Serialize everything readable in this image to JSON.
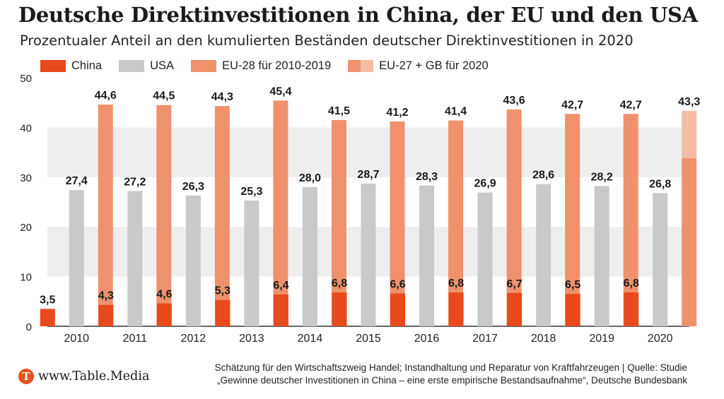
{
  "header": {
    "title": "Deutsche Direktinvestitionen in China, der EU und den USA",
    "subtitle": "Prozentualer Anteil an den kumulierten Beständen deutscher Direktinvestitionen in 2020"
  },
  "legend": {
    "items": [
      {
        "label": "China",
        "color": "#e8491d"
      },
      {
        "label": "USA",
        "color": "#c9c9c9"
      },
      {
        "label": "EU-28 für 2010-2019",
        "color": "#ef916c"
      },
      {
        "label": "EU-27 + GB für 2020",
        "color": "#ef916c",
        "color_light": "#f5bca4"
      }
    ]
  },
  "chart_data": {
    "type": "bar",
    "categories": [
      "2010",
      "2011",
      "2012",
      "2013",
      "2014",
      "2015",
      "2016",
      "2017",
      "2018",
      "2019",
      "2020"
    ],
    "series": [
      {
        "name": "China",
        "color": "#e8491d",
        "values": [
          3.5,
          4.3,
          4.6,
          5.3,
          6.4,
          6.8,
          6.6,
          6.8,
          6.7,
          6.5,
          6.8
        ],
        "labels": [
          "3,5",
          "4,3",
          "4,6",
          "5,3",
          "6,4",
          "6,8",
          "6,6",
          "6,8",
          "6,7",
          "6,5",
          "6,8"
        ]
      },
      {
        "name": "USA",
        "color": "#c9c9c9",
        "values": [
          27.4,
          27.2,
          26.3,
          25.3,
          28.0,
          28.7,
          28.3,
          26.9,
          28.6,
          28.2,
          26.8
        ],
        "labels": [
          "27,4",
          "27,2",
          "26,3",
          "25,3",
          "28,0",
          "28,7",
          "28,3",
          "26,9",
          "28,6",
          "28,2",
          "26,8"
        ]
      },
      {
        "name": "EU-28 für 2010-2019",
        "color": "#ef916c",
        "values": [
          44.6,
          44.5,
          44.3,
          45.4,
          41.5,
          41.2,
          41.4,
          43.6,
          42.7,
          42.7,
          43.3
        ],
        "labels": [
          "44,6",
          "44,5",
          "44,3",
          "45,4",
          "41,5",
          "41,2",
          "41,4",
          "43,6",
          "42,7",
          "42,7",
          "43,3"
        ]
      }
    ],
    "stacked_2020": {
      "eu27": 33.8,
      "gb": 9.5,
      "color_eu27": "#ef916c",
      "color_gb": "#f5bca4"
    },
    "yticks": [
      "0",
      "10",
      "20",
      "30",
      "40",
      "50"
    ],
    "ylim": [
      0,
      50
    ],
    "grid": "horizontal bands"
  },
  "footer": {
    "logo_letter": "T",
    "site": "www.Table.Media",
    "note_line1": "Schätzung für den Wirtschaftszweig Handel; Instandhaltung und Reparatur von Kraftfahrzeugen | Quelle: Studie",
    "note_line2": "„Gewinne deutscher Investitionen in China – eine erste empirische Bestandsaufnahme“, Deutsche Bundesbank"
  }
}
